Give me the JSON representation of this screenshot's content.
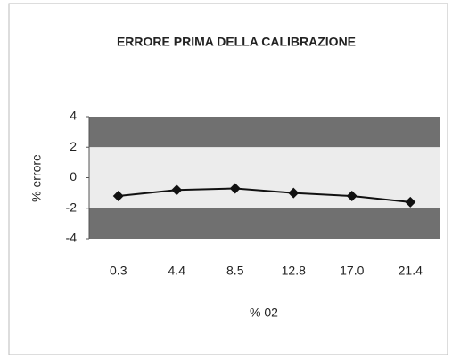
{
  "chart_data": {
    "type": "line",
    "title": "ERRORE PRIMA DELLA CALIBRAZIONE",
    "x_label": "% 02",
    "y_label": "% errore",
    "categories": [
      "0.3",
      "4.4",
      "8.5",
      "12.8",
      "17.0",
      "21.4"
    ],
    "series": [
      {
        "name": "errore",
        "color": "#111111",
        "values": [
          -1.2,
          -0.8,
          -0.7,
          -1.0,
          -1.2,
          -1.6
        ]
      }
    ],
    "ylim": [
      -4,
      4
    ],
    "yticks": [
      -4,
      -2,
      0,
      2,
      4
    ],
    "bands": [
      {
        "from": 2,
        "to": 4,
        "color": "#707070"
      },
      {
        "from": -2,
        "to": 2,
        "color": "#ececec"
      },
      {
        "from": -4,
        "to": -2,
        "color": "#707070"
      }
    ]
  }
}
